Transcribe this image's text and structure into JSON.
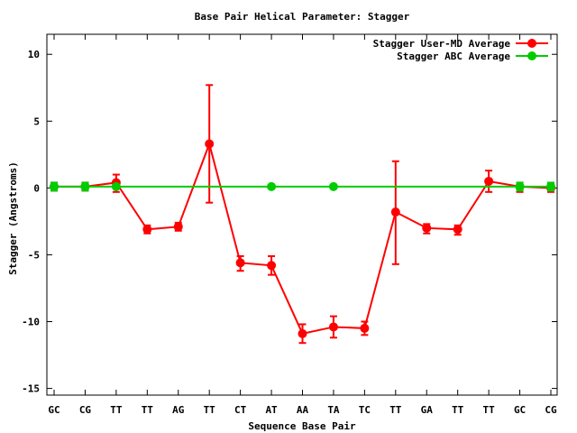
{
  "chart_data": {
    "type": "line",
    "title": "Base Pair Helical Parameter: Stagger",
    "xlabel": "Sequence Base Pair",
    "ylabel": "Stagger (Angstroms)",
    "categories": [
      "GC",
      "CG",
      "TT",
      "TT",
      "AG",
      "TT",
      "CT",
      "AT",
      "AA",
      "TA",
      "TC",
      "TT",
      "GA",
      "TT",
      "TT",
      "GC",
      "CG"
    ],
    "ylim": [
      -15.5,
      11.5
    ],
    "yticks": [
      10,
      5,
      0,
      -5,
      -10,
      -15
    ],
    "grid": false,
    "legend_position": "top-right",
    "series": [
      {
        "name": "Stagger User-MD Average",
        "color": "#ff0000",
        "values": [
          0.1,
          0.1,
          0.4,
          -3.1,
          -2.9,
          3.3,
          -5.6,
          -5.8,
          -10.9,
          -10.4,
          -10.5,
          -1.8,
          -3.0,
          -3.1,
          0.5,
          0.1,
          0.0
        ],
        "err_low": [
          -0.2,
          -0.2,
          -0.3,
          -3.4,
          -3.2,
          -1.1,
          -6.2,
          -6.5,
          -11.6,
          -11.2,
          -11.0,
          -5.7,
          -3.4,
          -3.5,
          -0.3,
          -0.3,
          -0.3
        ],
        "err_high": [
          0.4,
          0.4,
          1.0,
          -2.8,
          -2.6,
          7.7,
          -5.1,
          -5.1,
          -10.2,
          -9.6,
          -10.0,
          2.0,
          -2.7,
          -2.8,
          1.3,
          0.4,
          0.3
        ]
      },
      {
        "name": "Stagger ABC Average",
        "color": "#00cc00",
        "values": [
          0.1,
          0.1,
          0.1,
          null,
          null,
          null,
          null,
          0.1,
          null,
          0.1,
          null,
          null,
          null,
          null,
          null,
          0.1,
          0.1
        ],
        "err_low": [
          -0.2,
          -0.2,
          null,
          null,
          null,
          null,
          null,
          null,
          null,
          null,
          null,
          null,
          null,
          null,
          null,
          -0.2,
          -0.2
        ],
        "err_high": [
          0.4,
          0.4,
          null,
          null,
          null,
          null,
          null,
          null,
          null,
          null,
          null,
          null,
          null,
          null,
          null,
          0.4,
          0.4
        ]
      }
    ]
  }
}
